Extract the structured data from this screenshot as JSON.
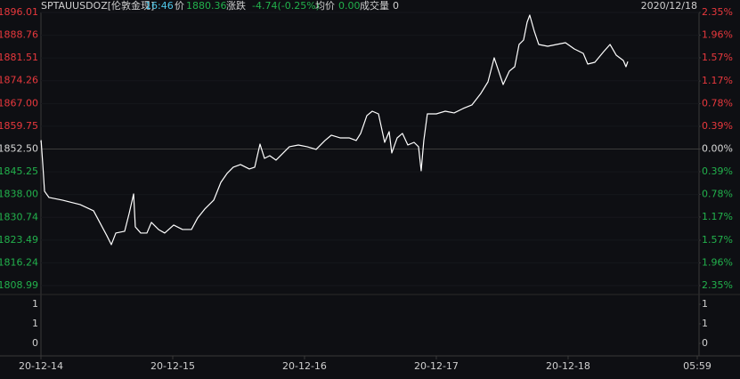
{
  "header": {
    "symbol": "SPTAUUSDOZ[伦敦金现]",
    "time": "16:46",
    "price_label": "价",
    "price": "1880.36",
    "change_label": "涨跌",
    "change": "-4.74(-0.25%)",
    "avg_label": "均价",
    "avg": "0.00",
    "volume_label": "成交量",
    "volume": "0",
    "date": "2020/12/18"
  },
  "chart_data": [
    {
      "type": "line",
      "color": "#ffffff",
      "grid": true,
      "colors": {
        "up": "#e8383d",
        "down": "#22b14c",
        "flat": "#d8d8d8"
      },
      "x": [
        0,
        0.001,
        0.014,
        0.027,
        0.061,
        0.162,
        0.297,
        0.399,
        0.446,
        0.5,
        0.534,
        0.568,
        0.635,
        0.669,
        0.703,
        0.716,
        0.757,
        0.804,
        0.838,
        0.892,
        0.939,
        1.007,
        1.074,
        1.142,
        1.189,
        1.243,
        1.311,
        1.365,
        1.412,
        1.459,
        1.514,
        1.581,
        1.622,
        1.662,
        1.696,
        1.736,
        1.784,
        1.838,
        1.885,
        1.953,
        2.02,
        2.088,
        2.155,
        2.203,
        2.27,
        2.338,
        2.392,
        2.426,
        2.473,
        2.514,
        2.561,
        2.608,
        2.642,
        2.662,
        2.703,
        2.743,
        2.784,
        2.831,
        2.865,
        2.885,
        2.905,
        2.932,
        3.0,
        3.068,
        3.135,
        3.203,
        3.27,
        3.338,
        3.392,
        3.439,
        3.473,
        3.507,
        3.554,
        3.595,
        3.628,
        3.662,
        3.689,
        3.709,
        3.743,
        3.777,
        3.845,
        3.912,
        3.98,
        4.047,
        4.115,
        4.149,
        4.203,
        4.27,
        4.318,
        4.365,
        4.419,
        4.439,
        4.453
      ],
      "values": [
        1854.63,
        1855.2,
        1847.55,
        1839.05,
        1837.06,
        1836.21,
        1834.8,
        1832.81,
        1829.13,
        1824.88,
        1822.04,
        1825.73,
        1826.29,
        1831.96,
        1838.2,
        1827.71,
        1825.73,
        1825.73,
        1829.13,
        1826.86,
        1825.73,
        1828.28,
        1826.86,
        1826.86,
        1830.54,
        1833.38,
        1836.21,
        1841.88,
        1844.71,
        1846.7,
        1847.55,
        1846.13,
        1846.7,
        1854.07,
        1849.53,
        1850.38,
        1848.97,
        1851.23,
        1853.22,
        1853.78,
        1853.22,
        1852.37,
        1855.2,
        1856.9,
        1856.05,
        1856.05,
        1855.2,
        1857.47,
        1863.14,
        1864.55,
        1863.7,
        1854.63,
        1858.03,
        1851.23,
        1856.05,
        1857.47,
        1853.78,
        1854.63,
        1853.22,
        1845.56,
        1855.2,
        1863.7,
        1863.7,
        1864.55,
        1863.99,
        1865.4,
        1866.54,
        1870.22,
        1873.9,
        1881.56,
        1877.31,
        1873.05,
        1877.31,
        1878.72,
        1885.81,
        1887.22,
        1892.89,
        1895.16,
        1890.06,
        1885.81,
        1885.24,
        1885.81,
        1886.37,
        1884.39,
        1882.97,
        1879.57,
        1880.14,
        1883.54,
        1885.81,
        1882.41,
        1880.71,
        1878.72,
        1880.36
      ],
      "xlim": [
        0,
        4.98
      ],
      "xticks": [
        {
          "value": 0,
          "label": "20-12-14"
        },
        {
          "value": 1,
          "label": "20-12-15"
        },
        {
          "value": 2,
          "label": "20-12-16"
        },
        {
          "value": 3,
          "label": "20-12-17"
        },
        {
          "value": 4,
          "label": "20-12-18"
        },
        {
          "value": 4.98,
          "label": "05:59"
        }
      ],
      "ylim": [
        1808.99,
        1896.01
      ],
      "yticks": [
        1896.01,
        1888.76,
        1881.51,
        1874.26,
        {
          "value": 1867,
          "label": "1867.00"
        },
        1859.75,
        {
          "value": 1852.5,
          "label": "1852.50"
        },
        1845.25,
        {
          "value": 1838,
          "label": "1838.00"
        },
        1830.74,
        1823.49,
        1816.24,
        1808.99
      ],
      "y2lim": [
        -2.35,
        2.35
      ],
      "y2ticks": [
        {
          "value": 2.35,
          "label": "2.35%"
        },
        {
          "value": 1.96,
          "label": "1.96%"
        },
        {
          "value": 1.57,
          "label": "1.57%"
        },
        {
          "value": 1.17,
          "label": "1.17%"
        },
        {
          "value": 0.78,
          "label": "0.78%"
        },
        {
          "value": 0.39,
          "label": "0.39%"
        },
        {
          "value": 0,
          "label": "0.00%"
        },
        {
          "value": -0.39,
          "label": "0.39%"
        },
        {
          "value": -0.78,
          "label": "0.78%"
        },
        {
          "value": -1.17,
          "label": "1.17%"
        },
        {
          "value": -1.57,
          "label": "1.57%"
        },
        {
          "value": -1.96,
          "label": "1.96%"
        },
        {
          "value": -2.35,
          "label": "2.35%"
        }
      ]
    },
    {
      "type": "bar",
      "ylim": [
        0,
        1
      ],
      "yticks": [
        1,
        {
          "value": 0.5,
          "label": "1"
        },
        0
      ],
      "y2lim": [
        0,
        1
      ],
      "y2ticks": [
        1,
        {
          "value": 0.5,
          "label": "1"
        },
        0
      ]
    }
  ]
}
